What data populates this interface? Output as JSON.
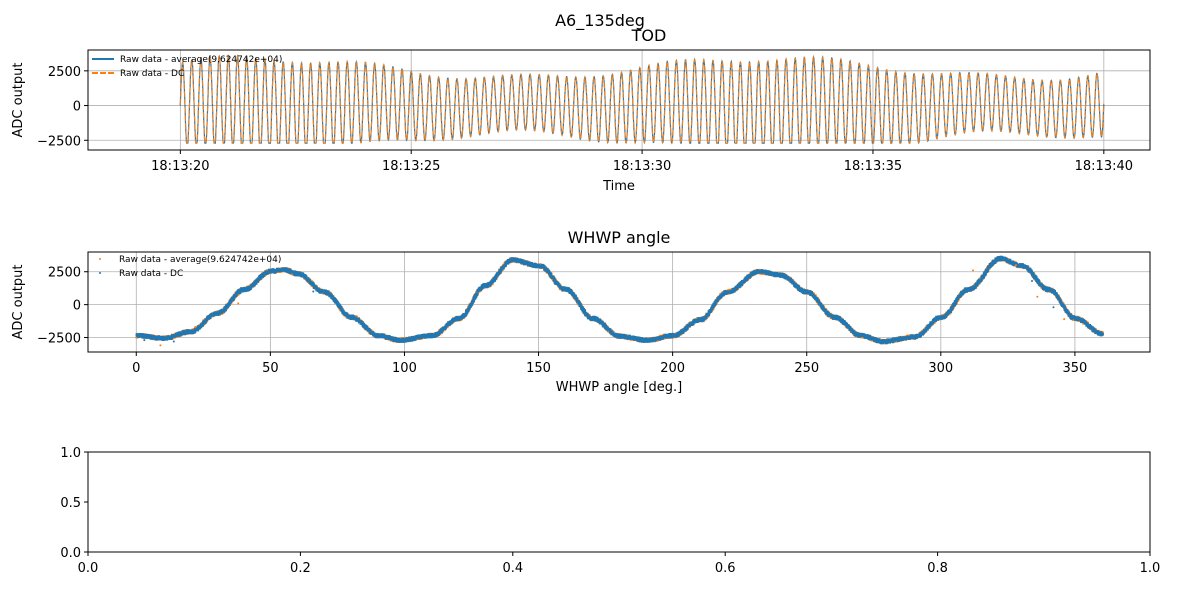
{
  "suptitle": "A6_135deg",
  "colors": {
    "blue": "#1f77b4",
    "orange": "#ff7f0e",
    "grid": "#b0b0b0"
  },
  "chart_data": [
    {
      "type": "line",
      "title": "TOD",
      "xlabel": "Time",
      "ylabel": "ADC output",
      "xlim": [
        "18:13:18",
        "18:13:41"
      ],
      "ylim": [
        -3200,
        4000
      ],
      "x_ticks": [
        "18:13:20",
        "18:13:25",
        "18:13:30",
        "18:13:35",
        "18:13:40"
      ],
      "y_ticks": [
        -2500,
        0,
        2500
      ],
      "y_tick_labels": [
        "−2500",
        "0",
        "2500"
      ],
      "grid": true,
      "legend_position": "top-left",
      "series": [
        {
          "name": "Raw data - average(9.624742e+04)",
          "color": "#1f77b4",
          "style": "line",
          "x_range": [
            "18:13:20",
            "18:13:40"
          ],
          "y_range": [
            -2700,
            3700
          ]
        },
        {
          "name": "Raw data - DC",
          "color": "#ff7f0e",
          "style": "dashed-line",
          "x_range": [
            "18:13:20",
            "18:13:40"
          ],
          "y_range": [
            -2700,
            3700
          ]
        }
      ]
    },
    {
      "type": "scatter",
      "title": "WHWP angle",
      "xlabel": "WHWP angle [deg.]",
      "ylabel": "ADC output",
      "xlim": [
        -18,
        378
      ],
      "ylim": [
        -3600,
        4000
      ],
      "x_ticks": [
        0,
        50,
        100,
        150,
        200,
        250,
        300,
        350
      ],
      "y_ticks": [
        -2500,
        0,
        2500
      ],
      "y_tick_labels": [
        "−2500",
        "0",
        "2500"
      ],
      "grid": true,
      "legend_position": "top-left",
      "series": [
        {
          "name": "Raw data - average(9.624742e+04)",
          "color": "#ff7f0e"
        },
        {
          "name": "Raw data - DC",
          "color": "#1f77b4"
        }
      ],
      "curve_points": [
        [
          0,
          -2300
        ],
        [
          10,
          -2500
        ],
        [
          20,
          -2000
        ],
        [
          30,
          -600
        ],
        [
          40,
          1200
        ],
        [
          50,
          2600
        ],
        [
          55,
          2700
        ],
        [
          60,
          2400
        ],
        [
          70,
          1000
        ],
        [
          80,
          -900
        ],
        [
          90,
          -2300
        ],
        [
          98,
          -2650
        ],
        [
          110,
          -2300
        ],
        [
          120,
          -1000
        ],
        [
          130,
          1500
        ],
        [
          140,
          3450
        ],
        [
          150,
          3000
        ],
        [
          160,
          1200
        ],
        [
          170,
          -1000
        ],
        [
          180,
          -2350
        ],
        [
          190,
          -2650
        ],
        [
          200,
          -2300
        ],
        [
          210,
          -1100
        ],
        [
          220,
          1000
        ],
        [
          232,
          2550
        ],
        [
          240,
          2300
        ],
        [
          250,
          1000
        ],
        [
          260,
          -900
        ],
        [
          270,
          -2300
        ],
        [
          278,
          -2750
        ],
        [
          290,
          -2400
        ],
        [
          300,
          -900
        ],
        [
          310,
          1200
        ],
        [
          322,
          3550
        ],
        [
          330,
          3000
        ],
        [
          340,
          1200
        ],
        [
          350,
          -1000
        ],
        [
          360,
          -2150
        ]
      ],
      "outliers": [
        [
          3,
          -2700
        ],
        [
          9,
          -3100
        ],
        [
          14,
          -2800
        ],
        [
          22,
          -1700
        ],
        [
          33,
          -500
        ],
        [
          38,
          100
        ],
        [
          45,
          1900
        ],
        [
          58,
          2300
        ],
        [
          66,
          1000
        ],
        [
          312,
          2600
        ],
        [
          316,
          2000
        ],
        [
          328,
          3000
        ],
        [
          334,
          1800
        ],
        [
          336,
          600
        ],
        [
          342,
          -200
        ],
        [
          346,
          -1100
        ]
      ]
    },
    {
      "type": "line",
      "title": "",
      "xlabel": "",
      "ylabel": "",
      "xlim": [
        0.0,
        1.0
      ],
      "ylim": [
        0.0,
        1.0
      ],
      "x_ticks": [
        "0.0",
        "0.2",
        "0.4",
        "0.6",
        "0.8",
        "1.0"
      ],
      "y_ticks": [
        "0.0",
        "0.5",
        "1.0"
      ],
      "grid": false,
      "series": []
    }
  ]
}
